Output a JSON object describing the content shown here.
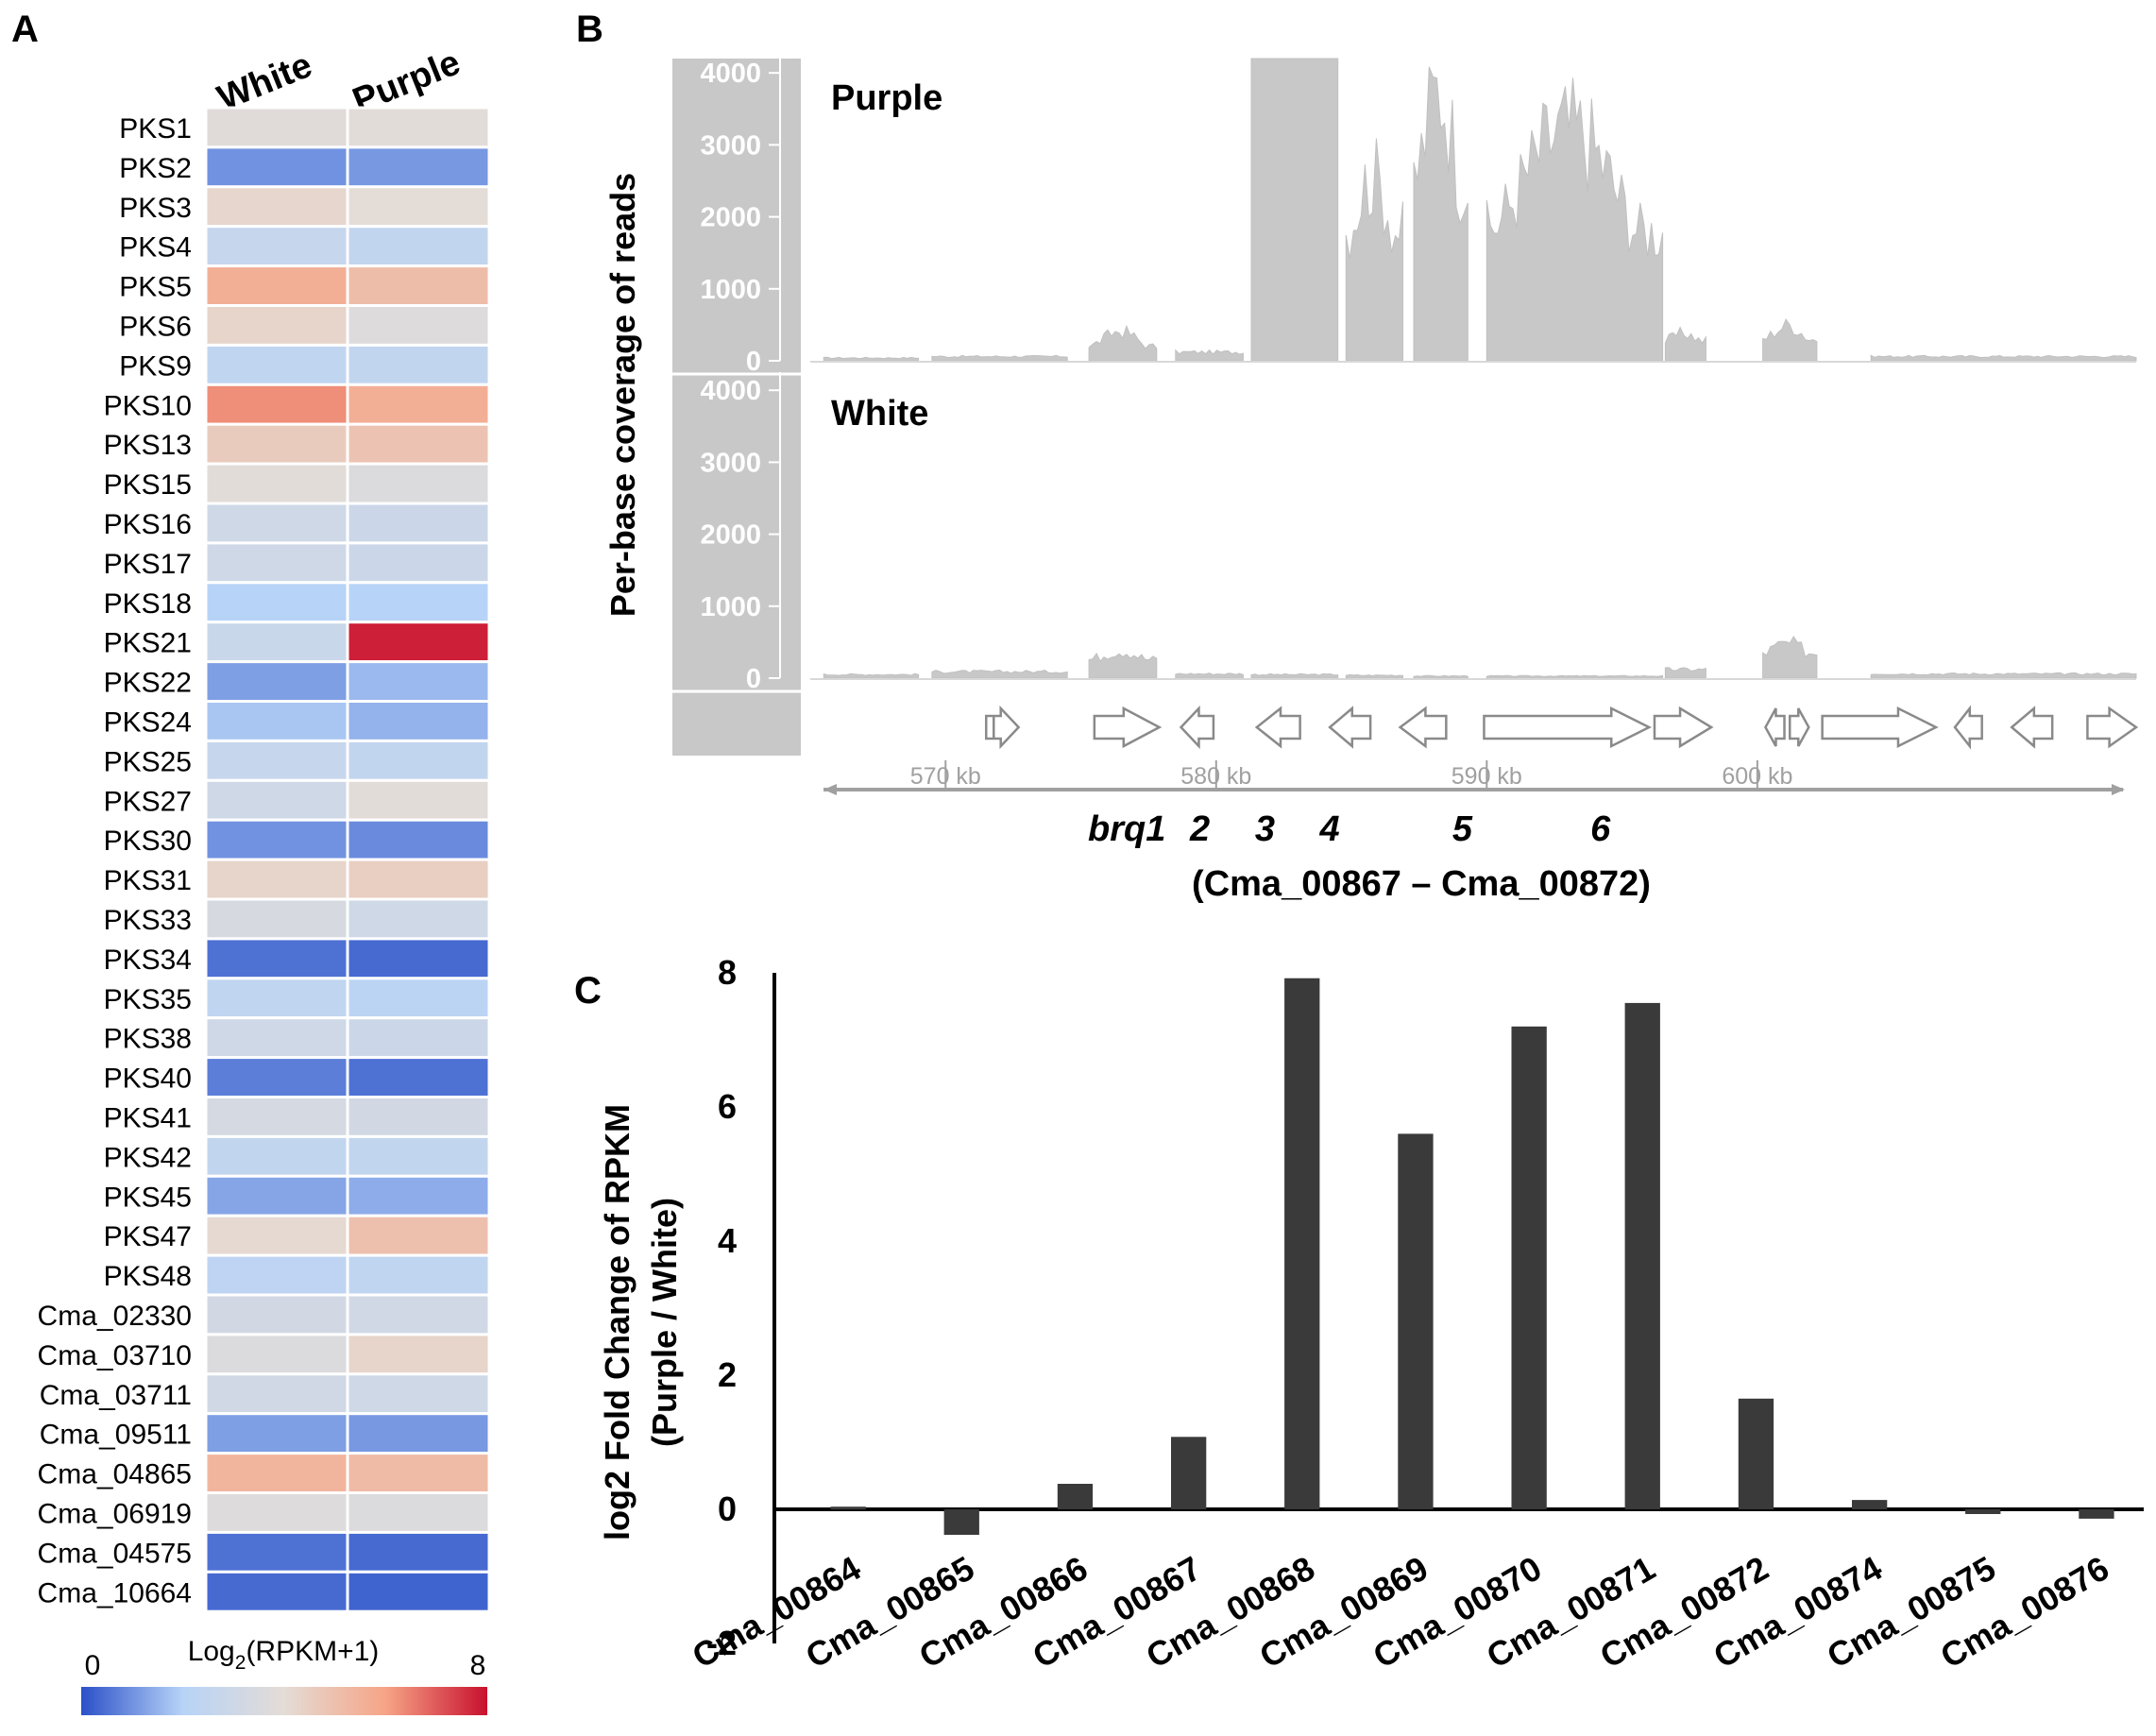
{
  "panel_labels": {
    "a": "A",
    "b": "B",
    "c": "C"
  },
  "chart_data": [
    {
      "type": "heatmap",
      "panel": "A",
      "columns": [
        "White",
        "Purple"
      ],
      "rows": [
        "PKS1",
        "PKS2",
        "PKS3",
        "PKS4",
        "PKS5",
        "PKS6",
        "PKS9",
        "PKS10",
        "PKS13",
        "PKS15",
        "PKS16",
        "PKS17",
        "PKS18",
        "PKS21",
        "PKS22",
        "PKS24",
        "PKS25",
        "PKS27",
        "PKS30",
        "PKS31",
        "PKS33",
        "PKS34",
        "PKS35",
        "PKS38",
        "PKS40",
        "PKS41",
        "PKS42",
        "PKS45",
        "PKS47",
        "PKS48",
        "Cma_02330",
        "Cma_03710",
        "Cma_03711",
        "Cma_09511",
        "Cma_04865",
        "Cma_06919",
        "Cma_04575",
        "Cma_10664"
      ],
      "values": [
        [
          3.8,
          3.9
        ],
        [
          1.0,
          1.1
        ],
        [
          4.2,
          4.0
        ],
        [
          2.6,
          2.5
        ],
        [
          5.6,
          5.1
        ],
        [
          4.3,
          3.7
        ],
        [
          2.4,
          2.5
        ],
        [
          6.3,
          5.6
        ],
        [
          4.6,
          4.9
        ],
        [
          3.9,
          3.6
        ],
        [
          3.0,
          2.9
        ],
        [
          3.0,
          2.9
        ],
        [
          2.0,
          2.0
        ],
        [
          2.8,
          7.8
        ],
        [
          1.2,
          1.6
        ],
        [
          1.8,
          1.5
        ],
        [
          2.6,
          2.5
        ],
        [
          3.0,
          3.9
        ],
        [
          1.0,
          0.9
        ],
        [
          4.3,
          4.5
        ],
        [
          3.4,
          3.0
        ],
        [
          0.5,
          0.4
        ],
        [
          2.4,
          2.2
        ],
        [
          3.0,
          2.9
        ],
        [
          0.7,
          0.5
        ],
        [
          3.3,
          3.2
        ],
        [
          2.5,
          2.5
        ],
        [
          1.3,
          1.4
        ],
        [
          4.1,
          5.0
        ],
        [
          2.3,
          2.4
        ],
        [
          3.2,
          3.1
        ],
        [
          3.6,
          4.3
        ],
        [
          3.1,
          3.0
        ],
        [
          1.2,
          1.1
        ],
        [
          5.4,
          5.2
        ],
        [
          3.7,
          3.6
        ],
        [
          0.5,
          0.4
        ],
        [
          0.4,
          0.3
        ]
      ],
      "colorbar": {
        "label_main": "Log",
        "label_sub": "2",
        "label_rest": "(RPKM+1)",
        "min": 0,
        "max": 8,
        "min_label": "0",
        "max_label": "8",
        "colors": [
          "#2b50c8",
          "#b7d3f7",
          "#e4dcd6",
          "#f6a486",
          "#c8102e"
        ]
      }
    },
    {
      "type": "area",
      "panel": "B",
      "ylabel": "Per-base coverage of reads",
      "tracks": [
        {
          "name": "Purple",
          "ylim": [
            0,
            4200
          ],
          "ticks": [
            "4000",
            "3000",
            "2000",
            "1000",
            "0"
          ],
          "tick_values": [
            4000,
            3000,
            2000,
            1000,
            0
          ],
          "color": "#c8c8c8"
        },
        {
          "name": "White",
          "ylim": [
            0,
            4200
          ],
          "ticks": [
            "4000",
            "3000",
            "2000",
            "1000",
            "0"
          ],
          "tick_values": [
            4000,
            3000,
            2000,
            1000,
            0
          ],
          "color": "#c8c8c8"
        }
      ],
      "xlim_kb": [
        565,
        614
      ],
      "position_ticks": [
        "570 kb",
        "580 kb",
        "590 kb",
        "600 kb"
      ],
      "position_tick_values": [
        570,
        580,
        590,
        600
      ],
      "gene_labels": [
        "brq1",
        "2",
        "3",
        "4",
        "5",
        "6"
      ],
      "gene_label_positions_kb": [
        576.7,
        579.4,
        581.8,
        584.2,
        589.1,
        594.2
      ],
      "gene_range_label": "(Cma_00867 – Cma_00872)",
      "purple_segments": [
        {
          "start": 565.5,
          "end": 569.0,
          "level": 40
        },
        {
          "start": 569.5,
          "end": 574.5,
          "level": 60
        },
        {
          "start": 575.3,
          "end": 577.8,
          "level": 200,
          "peak": 480
        },
        {
          "start": 578.5,
          "end": 581.0,
          "level": 120
        },
        {
          "start": 581.3,
          "end": 584.5,
          "level": 4200
        },
        {
          "start": 584.8,
          "end": 586.9,
          "level": 1800,
          "peak": 2800
        },
        {
          "start": 587.3,
          "end": 589.3,
          "level": 2500,
          "peak": 4200
        },
        {
          "start": 590.0,
          "end": 596.5,
          "level": 1800,
          "peak": 3700
        },
        {
          "start": 596.6,
          "end": 598.1,
          "level": 280,
          "peak": 420
        },
        {
          "start": 600.2,
          "end": 602.2,
          "level": 300,
          "peak": 560
        },
        {
          "start": 604.2,
          "end": 614.0,
          "level": 60
        }
      ],
      "white_segments": [
        {
          "start": 565.5,
          "end": 569.0,
          "level": 50
        },
        {
          "start": 569.5,
          "end": 574.5,
          "level": 90
        },
        {
          "start": 575.3,
          "end": 577.8,
          "level": 260,
          "peak": 420
        },
        {
          "start": 578.5,
          "end": 581.0,
          "level": 60
        },
        {
          "start": 581.3,
          "end": 584.5,
          "level": 50
        },
        {
          "start": 584.8,
          "end": 586.9,
          "level": 40
        },
        {
          "start": 587.3,
          "end": 589.3,
          "level": 30
        },
        {
          "start": 590.0,
          "end": 596.5,
          "level": 30
        },
        {
          "start": 596.6,
          "end": 598.1,
          "level": 120
        },
        {
          "start": 600.2,
          "end": 602.2,
          "level": 350,
          "peak": 520
        },
        {
          "start": 604.2,
          "end": 614.0,
          "level": 60
        }
      ],
      "genes": [
        {
          "start": 571.5,
          "end": 572.7,
          "strand": "+",
          "boxed": true
        },
        {
          "start": 575.5,
          "end": 577.9,
          "strand": "+"
        },
        {
          "start": 578.7,
          "end": 579.9,
          "strand": "-"
        },
        {
          "start": 581.5,
          "end": 583.1,
          "strand": "-"
        },
        {
          "start": 584.2,
          "end": 585.7,
          "strand": "-"
        },
        {
          "start": 586.8,
          "end": 588.5,
          "strand": "-"
        },
        {
          "start": 589.9,
          "end": 596.0,
          "strand": "+"
        },
        {
          "start": 596.2,
          "end": 598.3,
          "strand": "+"
        },
        {
          "start": 600.3,
          "end": 601.0,
          "strand": "-"
        },
        {
          "start": 601.2,
          "end": 601.9,
          "strand": "+"
        },
        {
          "start": 602.4,
          "end": 606.6,
          "strand": "+"
        },
        {
          "start": 607.3,
          "end": 608.3,
          "strand": "-"
        },
        {
          "start": 609.4,
          "end": 610.9,
          "strand": "-"
        },
        {
          "start": 612.2,
          "end": 614.0,
          "strand": "+"
        }
      ]
    },
    {
      "type": "bar",
      "panel": "C",
      "categories": [
        "Cma_00864",
        "Cma_00865",
        "Cma_00866",
        "Cma_00867",
        "Cma_00868",
        "Cma_00869",
        "Cma_00870",
        "Cma_00871",
        "Cma_00872",
        "Cma_00874",
        "Cma_00875",
        "Cma_00876"
      ],
      "values": [
        0.04,
        -0.38,
        0.38,
        1.08,
        7.92,
        5.6,
        7.2,
        7.55,
        1.65,
        0.14,
        -0.07,
        -0.14
      ],
      "ylabel_line1": "log2 Fold Change of RPKM",
      "ylabel_line2": "(Purple / White)",
      "ylim": [
        -2,
        8
      ],
      "yticks": [
        "8",
        "6",
        "4",
        "2",
        "0",
        "-2"
      ],
      "ytick_values": [
        8,
        6,
        4,
        2,
        0,
        -2
      ],
      "bar_color": "#3a3a3a"
    }
  ]
}
